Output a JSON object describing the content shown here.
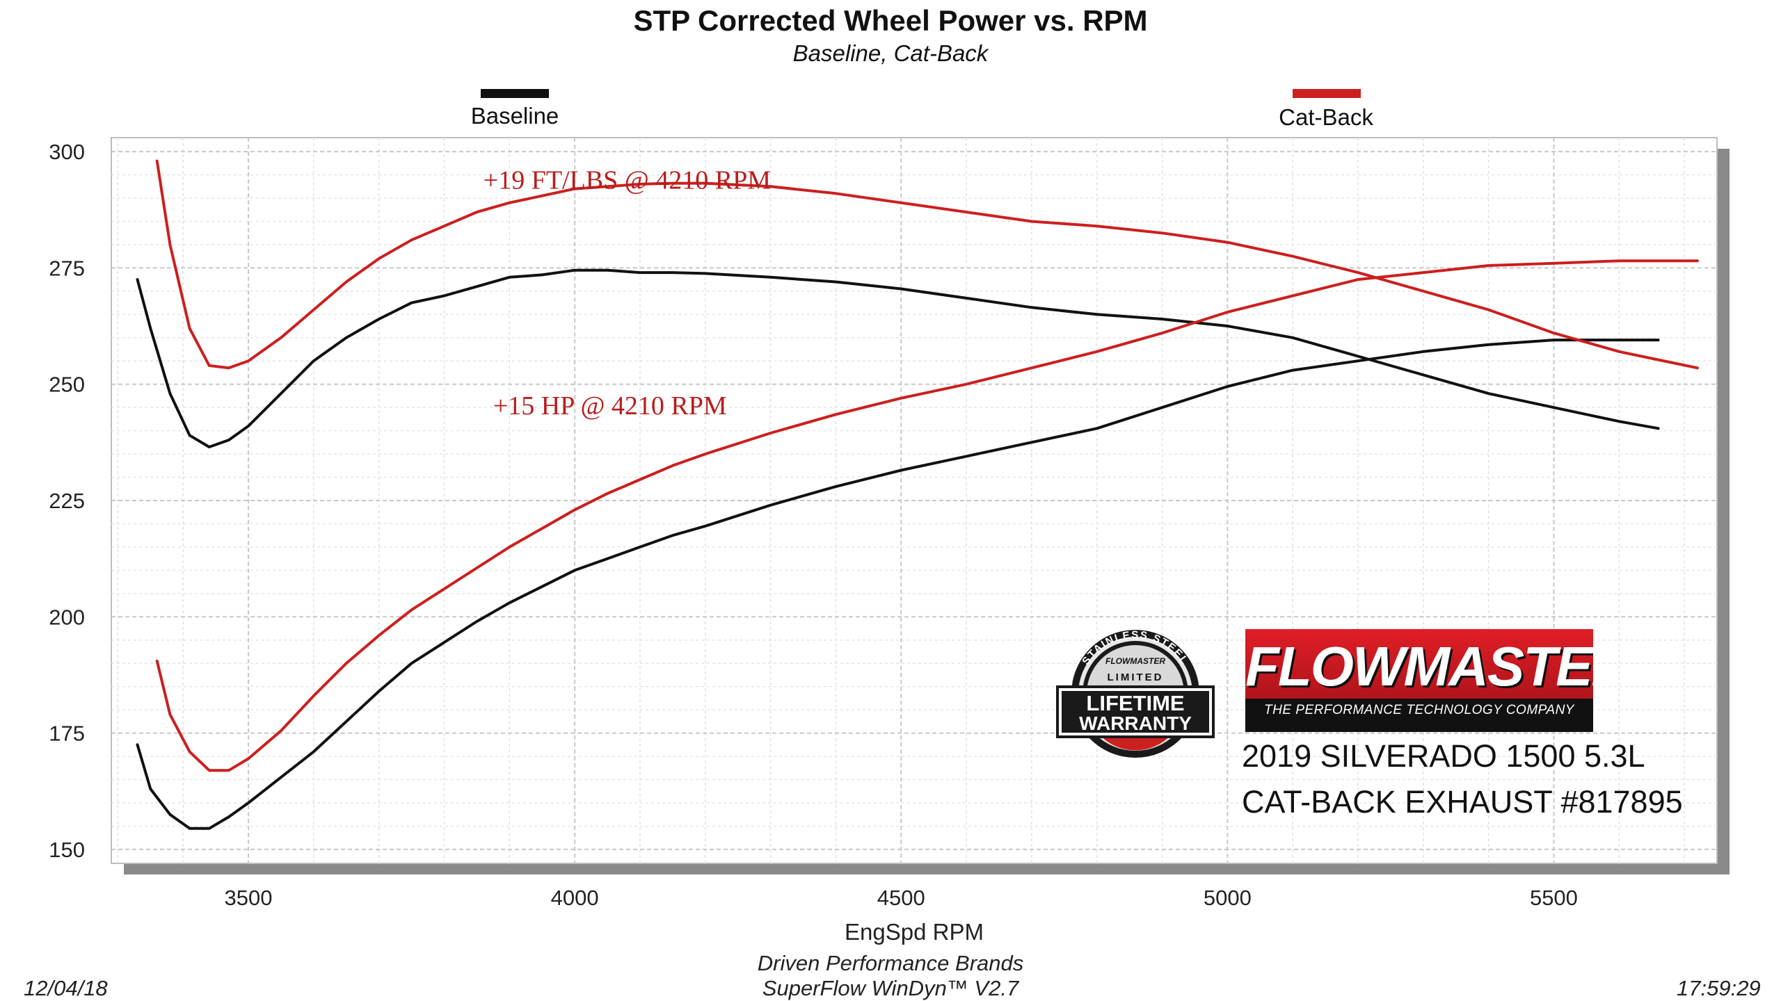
{
  "title": "STP Corrected Wheel Power vs. RPM",
  "subtitle": "Baseline, Cat-Back",
  "legend": [
    {
      "label": "Baseline",
      "color": "#111111"
    },
    {
      "label": "Cat-Back",
      "color": "#cc1f1f"
    }
  ],
  "annotations": {
    "torque": "+19 FT/LBS @ 4210 RPM",
    "hp": "+15 HP @ 4210 RPM"
  },
  "footer": {
    "company": "Driven Performance Brands",
    "software": "SuperFlow WinDyn™  V2.7",
    "date": "12/04/18",
    "time": "17:59:29"
  },
  "branding": {
    "logo": "FLOWMASTER",
    "tagline": "THE PERFORMANCE TECHNOLOGY COMPANY",
    "warranty_badge": [
      "STAINLESS STEEL",
      "LIMITED",
      "LIFETIME",
      "WARRANTY",
      "FLOWMASTER"
    ],
    "vehicle_line1": "2019 SILVERADO 1500 5.3L",
    "vehicle_line2": "CAT-BACK EXHAUST #817895"
  },
  "chart_data": {
    "type": "line",
    "title": "STP Corrected Wheel Power vs. RPM",
    "subtitle": "Baseline, Cat-Back",
    "xlabel": "EngSpd  RPM",
    "ylabel": "",
    "xlim": [
      3290,
      5750
    ],
    "ylim": [
      147,
      303
    ],
    "xticks": [
      3500,
      4000,
      4500,
      5000,
      5500
    ],
    "yticks": [
      150,
      175,
      200,
      225,
      250,
      275,
      300
    ],
    "grid": true,
    "legend_position": "top",
    "series": [
      {
        "name": "Baseline",
        "metric": "torque",
        "color": "#111111",
        "points": [
          [
            3330,
            272.5
          ],
          [
            3350,
            262
          ],
          [
            3380,
            248
          ],
          [
            3410,
            239
          ],
          [
            3440,
            236.5
          ],
          [
            3470,
            238
          ],
          [
            3500,
            241
          ],
          [
            3550,
            248
          ],
          [
            3600,
            255
          ],
          [
            3650,
            260
          ],
          [
            3700,
            264
          ],
          [
            3750,
            267.5
          ],
          [
            3800,
            269
          ],
          [
            3850,
            271
          ],
          [
            3900,
            273
          ],
          [
            3950,
            273.5
          ],
          [
            4000,
            274.5
          ],
          [
            4050,
            274.5
          ],
          [
            4100,
            274
          ],
          [
            4150,
            274
          ],
          [
            4200,
            273.8
          ],
          [
            4300,
            273
          ],
          [
            4400,
            272
          ],
          [
            4500,
            270.5
          ],
          [
            4600,
            268.5
          ],
          [
            4700,
            266.5
          ],
          [
            4800,
            265
          ],
          [
            4900,
            264
          ],
          [
            5000,
            262.5
          ],
          [
            5100,
            260
          ],
          [
            5200,
            256
          ],
          [
            5300,
            252
          ],
          [
            5400,
            248
          ],
          [
            5500,
            245
          ],
          [
            5600,
            242
          ],
          [
            5660,
            240.5
          ]
        ]
      },
      {
        "name": "Baseline",
        "metric": "horsepower",
        "color": "#111111",
        "points": [
          [
            3330,
            172.5
          ],
          [
            3350,
            163
          ],
          [
            3380,
            157.5
          ],
          [
            3410,
            154.5
          ],
          [
            3440,
            154.5
          ],
          [
            3470,
            157
          ],
          [
            3500,
            160
          ],
          [
            3550,
            165.5
          ],
          [
            3600,
            171
          ],
          [
            3650,
            177.5
          ],
          [
            3700,
            184
          ],
          [
            3750,
            190
          ],
          [
            3800,
            194.5
          ],
          [
            3850,
            199
          ],
          [
            3900,
            203
          ],
          [
            3950,
            206.5
          ],
          [
            4000,
            210
          ],
          [
            4050,
            212.5
          ],
          [
            4100,
            215
          ],
          [
            4150,
            217.5
          ],
          [
            4200,
            219.5
          ],
          [
            4300,
            224
          ],
          [
            4400,
            228
          ],
          [
            4500,
            231.5
          ],
          [
            4600,
            234.5
          ],
          [
            4700,
            237.5
          ],
          [
            4800,
            240.5
          ],
          [
            4900,
            245
          ],
          [
            5000,
            249.5
          ],
          [
            5100,
            253
          ],
          [
            5200,
            255
          ],
          [
            5300,
            257
          ],
          [
            5400,
            258.5
          ],
          [
            5500,
            259.5
          ],
          [
            5600,
            259.5
          ],
          [
            5660,
            259.5
          ]
        ]
      },
      {
        "name": "Cat-Back",
        "metric": "torque",
        "color": "#cc1f1f",
        "points": [
          [
            3360,
            298
          ],
          [
            3380,
            280
          ],
          [
            3410,
            262
          ],
          [
            3440,
            254
          ],
          [
            3470,
            253.5
          ],
          [
            3500,
            255
          ],
          [
            3550,
            260
          ],
          [
            3600,
            266
          ],
          [
            3650,
            272
          ],
          [
            3700,
            277
          ],
          [
            3750,
            281
          ],
          [
            3800,
            284
          ],
          [
            3850,
            287
          ],
          [
            3900,
            289
          ],
          [
            3950,
            290.5
          ],
          [
            4000,
            292
          ],
          [
            4050,
            292.5
          ],
          [
            4100,
            293
          ],
          [
            4150,
            293.2
          ],
          [
            4200,
            293.2
          ],
          [
            4300,
            292.5
          ],
          [
            4400,
            291
          ],
          [
            4500,
            289
          ],
          [
            4600,
            287
          ],
          [
            4700,
            285
          ],
          [
            4800,
            284
          ],
          [
            4900,
            282.5
          ],
          [
            5000,
            280.5
          ],
          [
            5100,
            277.5
          ],
          [
            5200,
            274
          ],
          [
            5300,
            270
          ],
          [
            5400,
            266
          ],
          [
            5500,
            261
          ],
          [
            5600,
            257
          ],
          [
            5720,
            253.5
          ]
        ]
      },
      {
        "name": "Cat-Back",
        "metric": "horsepower",
        "color": "#cc1f1f",
        "points": [
          [
            3360,
            190.5
          ],
          [
            3380,
            179
          ],
          [
            3410,
            171
          ],
          [
            3440,
            167
          ],
          [
            3470,
            167
          ],
          [
            3500,
            169.5
          ],
          [
            3550,
            175.5
          ],
          [
            3600,
            183
          ],
          [
            3650,
            190
          ],
          [
            3700,
            196
          ],
          [
            3750,
            201.5
          ],
          [
            3800,
            206
          ],
          [
            3850,
            210.5
          ],
          [
            3900,
            215
          ],
          [
            3950,
            219
          ],
          [
            4000,
            223
          ],
          [
            4050,
            226.5
          ],
          [
            4100,
            229.5
          ],
          [
            4150,
            232.5
          ],
          [
            4200,
            235
          ],
          [
            4300,
            239.5
          ],
          [
            4400,
            243.5
          ],
          [
            4500,
            247
          ],
          [
            4600,
            250
          ],
          [
            4700,
            253.5
          ],
          [
            4800,
            257
          ],
          [
            4900,
            261
          ],
          [
            5000,
            265.5
          ],
          [
            5100,
            269
          ],
          [
            5200,
            272.5
          ],
          [
            5300,
            274
          ],
          [
            5400,
            275.5
          ],
          [
            5500,
            276
          ],
          [
            5600,
            276.5
          ],
          [
            5720,
            276.5
          ]
        ]
      }
    ]
  }
}
